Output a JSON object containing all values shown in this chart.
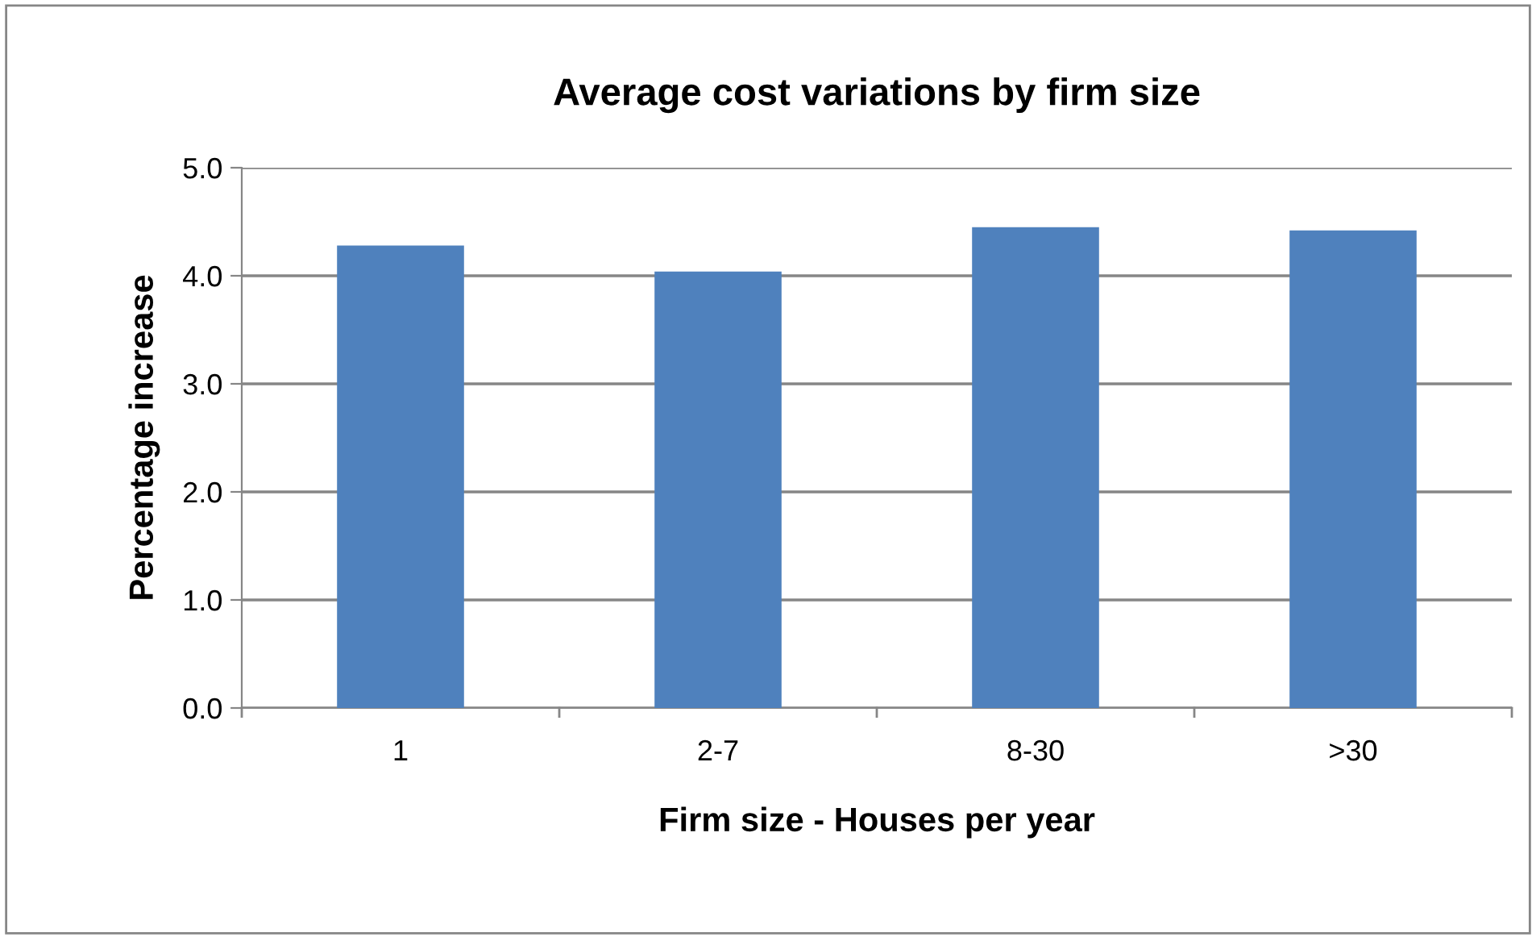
{
  "chart_data": {
    "type": "bar",
    "title": "Average cost variations by firm size",
    "xlabel": "Firm size - Houses per year",
    "ylabel": "Percentage increase",
    "categories": [
      "1",
      "2-7",
      "8-30",
      ">30"
    ],
    "series": [
      {
        "color": "#4f81bd",
        "values": [
          4.28,
          4.04,
          4.45,
          4.42
        ]
      }
    ],
    "ylim": [
      0,
      5
    ],
    "yticks": [
      {
        "value": 0,
        "label": "0.0"
      },
      {
        "value": 1,
        "label": "1.0"
      },
      {
        "value": 2,
        "label": "2.0"
      },
      {
        "value": 3,
        "label": "3.0"
      },
      {
        "value": 4,
        "label": "4.0"
      },
      {
        "value": 5,
        "label": "5.0"
      }
    ],
    "grid": "y"
  }
}
